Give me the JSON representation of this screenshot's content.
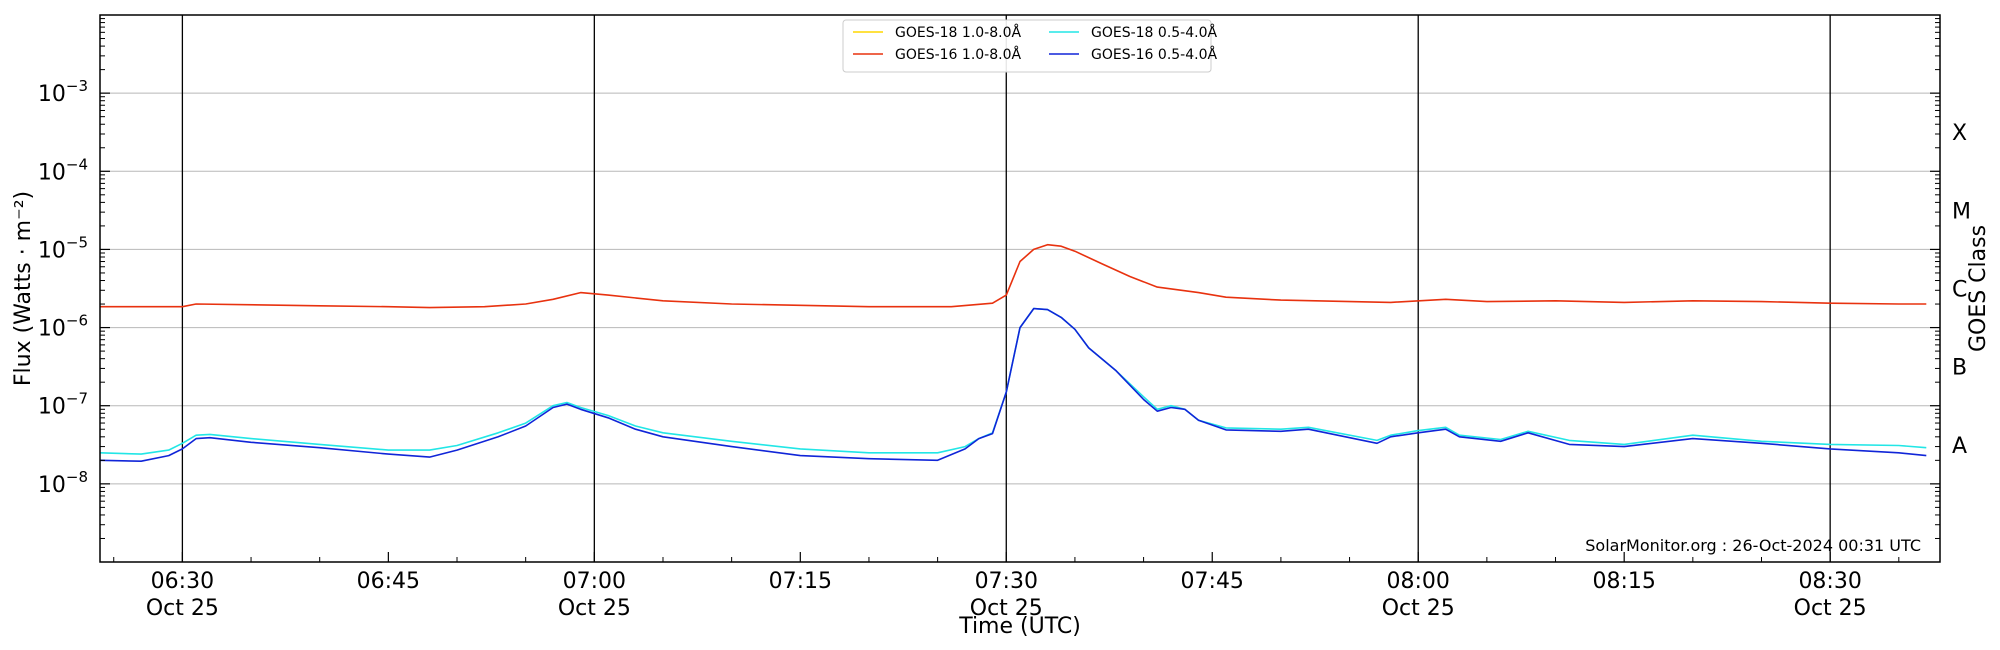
{
  "chart_data": {
    "type": "line",
    "xlabel": "Time (UTC)",
    "ylabel": "Flux (Watts · m⁻²)",
    "y2label": "GOES Class",
    "y_scale": "log",
    "ylim": [
      1e-09,
      0.01
    ],
    "xlim": [
      "06:24",
      "08:38"
    ],
    "x_ticks": [
      {
        "time": "06:30",
        "date": "Oct 25"
      },
      {
        "time": "06:45",
        "date": ""
      },
      {
        "time": "07:00",
        "date": "Oct 25"
      },
      {
        "time": "07:15",
        "date": ""
      },
      {
        "time": "07:30",
        "date": "Oct 25"
      },
      {
        "time": "07:45",
        "date": ""
      },
      {
        "time": "08:00",
        "date": "Oct 25"
      },
      {
        "time": "08:15",
        "date": ""
      },
      {
        "time": "08:30",
        "date": "Oct 25"
      }
    ],
    "vertical_lines": [
      "06:30",
      "07:00",
      "07:30",
      "08:00",
      "08:30"
    ],
    "y_ticks": [
      {
        "value": 1e-08,
        "base": "10",
        "exp": "−8"
      },
      {
        "value": 1e-07,
        "base": "10",
        "exp": "−7"
      },
      {
        "value": 1e-06,
        "base": "10",
        "exp": "−6"
      },
      {
        "value": 1e-05,
        "base": "10",
        "exp": "−5"
      },
      {
        "value": 0.0001,
        "base": "10",
        "exp": "−4"
      },
      {
        "value": 0.001,
        "base": "10",
        "exp": "−3"
      }
    ],
    "goes_classes": [
      {
        "label": "A",
        "value": 1e-08
      },
      {
        "label": "B",
        "value": 1e-07
      },
      {
        "label": "C",
        "value": 1e-06
      },
      {
        "label": "M",
        "value": 1e-05
      },
      {
        "label": "X",
        "value": 0.0001
      }
    ],
    "grid": true,
    "legend_position": "top-center",
    "credit": "SolarMonitor.org : 26-Oct-2024 00:31 UTC",
    "series": [
      {
        "name": "GOES-18 1.0-8.0Å",
        "color": "#FFD700",
        "x": [],
        "y": []
      },
      {
        "name": "GOES-16 1.0-8.0Å",
        "color": "#E8320F",
        "x": [
          "06:24",
          "06:30",
          "06:31",
          "06:40",
          "06:45",
          "06:48",
          "06:52",
          "06:55",
          "06:57",
          "06:59",
          "07:01",
          "07:05",
          "07:10",
          "07:20",
          "07:26",
          "07:29",
          "07:30",
          "07:31",
          "07:32",
          "07:33",
          "07:34",
          "07:35",
          "07:37",
          "07:39",
          "07:41",
          "07:44",
          "07:46",
          "07:50",
          "07:58",
          "08:02",
          "08:05",
          "08:10",
          "08:15",
          "08:20",
          "08:25",
          "08:30",
          "08:35",
          "08:37"
        ],
        "y": [
          1.85e-06,
          1.85e-06,
          2e-06,
          1.9e-06,
          1.85e-06,
          1.8e-06,
          1.85e-06,
          2e-06,
          2.3e-06,
          2.8e-06,
          2.6e-06,
          2.2e-06,
          2e-06,
          1.85e-06,
          1.85e-06,
          2.05e-06,
          2.6e-06,
          7e-06,
          1e-05,
          1.15e-05,
          1.1e-05,
          9.5e-06,
          6.5e-06,
          4.5e-06,
          3.3e-06,
          2.8e-06,
          2.45e-06,
          2.25e-06,
          2.1e-06,
          2.3e-06,
          2.15e-06,
          2.2e-06,
          2.1e-06,
          2.2e-06,
          2.15e-06,
          2.05e-06,
          2e-06,
          2e-06
        ]
      },
      {
        "name": "GOES-18 0.5-4.0Å",
        "color": "#22E6E6",
        "x": [
          "06:24",
          "06:27",
          "06:29",
          "06:30",
          "06:31",
          "06:32",
          "06:35",
          "06:40",
          "06:45",
          "06:48",
          "06:50",
          "06:53",
          "06:55",
          "06:57",
          "06:58",
          "06:59",
          "07:01",
          "07:03",
          "07:05",
          "07:10",
          "07:15",
          "07:20",
          "07:25",
          "07:27",
          "07:28",
          "07:29",
          "07:30",
          "07:31",
          "07:32",
          "07:33",
          "07:34",
          "07:35",
          "07:36",
          "07:38",
          "07:40",
          "07:41",
          "07:42",
          "07:43",
          "07:44",
          "07:46",
          "07:50",
          "07:52",
          "07:57",
          "07:58",
          "08:00",
          "08:02",
          "08:03",
          "08:06",
          "08:08",
          "08:11",
          "08:15",
          "08:20",
          "08:25",
          "08:30",
          "08:35",
          "08:37"
        ],
        "y": [
          2.5e-08,
          2.4e-08,
          2.7e-08,
          3.3e-08,
          4.2e-08,
          4.3e-08,
          3.8e-08,
          3.2e-08,
          2.7e-08,
          2.7e-08,
          3.1e-08,
          4.5e-08,
          6e-08,
          1e-07,
          1.1e-07,
          9.5e-08,
          7.5e-08,
          5.5e-08,
          4.5e-08,
          3.5e-08,
          2.8e-08,
          2.5e-08,
          2.5e-08,
          3e-08,
          3.8e-08,
          4.5e-08,
          1.5e-07,
          1e-06,
          1.75e-06,
          1.7e-06,
          1.35e-06,
          9.5e-07,
          5.5e-07,
          2.8e-07,
          1.3e-07,
          9e-08,
          1e-07,
          9e-08,
          6.5e-08,
          5.2e-08,
          5e-08,
          5.3e-08,
          3.6e-08,
          4.2e-08,
          4.8e-08,
          5.3e-08,
          4.2e-08,
          3.7e-08,
          4.7e-08,
          3.6e-08,
          3.2e-08,
          4.2e-08,
          3.5e-08,
          3.2e-08,
          3.1e-08,
          2.9e-08
        ]
      },
      {
        "name": "GOES-16 0.5-4.0Å",
        "color": "#1025D8",
        "x": [
          "06:24",
          "06:27",
          "06:29",
          "06:30",
          "06:31",
          "06:32",
          "06:35",
          "06:40",
          "06:45",
          "06:48",
          "06:50",
          "06:53",
          "06:55",
          "06:57",
          "06:58",
          "06:59",
          "07:01",
          "07:03",
          "07:05",
          "07:10",
          "07:15",
          "07:20",
          "07:25",
          "07:27",
          "07:28",
          "07:29",
          "07:30",
          "07:31",
          "07:32",
          "07:33",
          "07:34",
          "07:35",
          "07:36",
          "07:38",
          "07:40",
          "07:41",
          "07:42",
          "07:43",
          "07:44",
          "07:46",
          "07:50",
          "07:52",
          "07:57",
          "07:58",
          "08:00",
          "08:02",
          "08:03",
          "08:06",
          "08:08",
          "08:11",
          "08:15",
          "08:20",
          "08:25",
          "08:30",
          "08:35",
          "08:37"
        ],
        "y": [
          2e-08,
          1.95e-08,
          2.3e-08,
          2.8e-08,
          3.8e-08,
          3.9e-08,
          3.4e-08,
          2.9e-08,
          2.4e-08,
          2.2e-08,
          2.7e-08,
          4e-08,
          5.5e-08,
          9.5e-08,
          1.05e-07,
          9e-08,
          7e-08,
          5e-08,
          4e-08,
          3e-08,
          2.3e-08,
          2.1e-08,
          2e-08,
          2.8e-08,
          3.8e-08,
          4.4e-08,
          1.5e-07,
          1e-06,
          1.75e-06,
          1.7e-06,
          1.35e-06,
          9.5e-07,
          5.5e-07,
          2.8e-07,
          1.2e-07,
          8.5e-08,
          9.5e-08,
          9e-08,
          6.5e-08,
          4.9e-08,
          4.7e-08,
          5e-08,
          3.3e-08,
          4e-08,
          4.5e-08,
          5e-08,
          4e-08,
          3.5e-08,
          4.5e-08,
          3.2e-08,
          3e-08,
          3.8e-08,
          3.3e-08,
          2.8e-08,
          2.5e-08,
          2.3e-08
        ]
      }
    ]
  }
}
